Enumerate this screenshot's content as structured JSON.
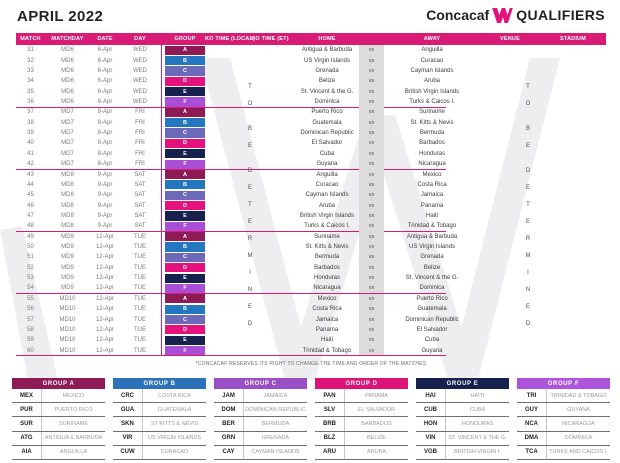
{
  "title": "APRIL 2022",
  "logo": {
    "brand": "Concacaf",
    "w_mark": "W",
    "product": "QUALIFIERS"
  },
  "colors": {
    "accent_pink": "#D81B75",
    "chips": {
      "A": "#8E1B56",
      "B": "#2377BE",
      "C": "#6B69B8",
      "D": "#E5127D",
      "E": "#16214D",
      "F": "#A94ED6"
    },
    "group_headers": {
      "A": "#8E1B56",
      "B": "#2B72B8",
      "C": "#9A4FC6",
      "D": "#DE1377",
      "E": "#16214D",
      "F": "#AE54DB"
    }
  },
  "schedule": {
    "columns": [
      "MATCH",
      "MATCHDAY",
      "DATE",
      "DAY",
      "GROUP",
      "KO TIME (LOCAL)",
      "KO TIME (ET)",
      "HOME",
      "AWAY",
      "VENUE",
      "STADIUM"
    ],
    "vs_label": "vs",
    "ko_time_placeholder": "TO BE DETERMINED",
    "venue_placeholder": "TO BE DETERMINED",
    "rows": [
      {
        "match": "31",
        "matchday": "MD6",
        "date": "6-Apr",
        "day": "WED",
        "group": "A",
        "home": "Antigua & Barbuda",
        "away": "Anguilla"
      },
      {
        "match": "32",
        "matchday": "MD6",
        "date": "6-Apr",
        "day": "WED",
        "group": "B",
        "home": "US Virgin Islands",
        "away": "Curacao"
      },
      {
        "match": "33",
        "matchday": "MD6",
        "date": "6-Apr",
        "day": "WED",
        "group": "C",
        "home": "Grenada",
        "away": "Cayman Islands"
      },
      {
        "match": "34",
        "matchday": "MD6",
        "date": "6-Apr",
        "day": "WED",
        "group": "D",
        "home": "Belize",
        "away": "Aruba"
      },
      {
        "match": "35",
        "matchday": "MD6",
        "date": "6-Apr",
        "day": "WED",
        "group": "E",
        "home": "St. Vincent & the G.",
        "away": "British Virgin Islands"
      },
      {
        "match": "36",
        "matchday": "MD6",
        "date": "6-Apr",
        "day": "WED",
        "group": "F",
        "home": "Dominica",
        "away": "Turks & Caicos I."
      },
      {
        "match": "37",
        "matchday": "MD7",
        "date": "8-Apr",
        "day": "FRI",
        "group": "A",
        "home": "Puerto Rico",
        "away": "Suriname"
      },
      {
        "match": "38",
        "matchday": "MD7",
        "date": "8-Apr",
        "day": "FRI",
        "group": "B",
        "home": "Guatemala",
        "away": "St. Kitts & Nevis"
      },
      {
        "match": "39",
        "matchday": "MD7",
        "date": "8-Apr",
        "day": "FRI",
        "group": "C",
        "home": "Dominican Republic",
        "away": "Bermuda"
      },
      {
        "match": "40",
        "matchday": "MD7",
        "date": "8-Apr",
        "day": "FRI",
        "group": "D",
        "home": "El Salvador",
        "away": "Barbados"
      },
      {
        "match": "41",
        "matchday": "MD7",
        "date": "8-Apr",
        "day": "FRI",
        "group": "E",
        "home": "Cuba",
        "away": "Honduras"
      },
      {
        "match": "42",
        "matchday": "MD7",
        "date": "8-Apr",
        "day": "FRI",
        "group": "F",
        "home": "Guyana",
        "away": "Nicaragua"
      },
      {
        "match": "43",
        "matchday": "MD8",
        "date": "9-Apr",
        "day": "SAT",
        "group": "A",
        "home": "Anguilla",
        "away": "Mexico"
      },
      {
        "match": "44",
        "matchday": "MD8",
        "date": "9-Apr",
        "day": "SAT",
        "group": "B",
        "home": "Curacao",
        "away": "Costa Rica"
      },
      {
        "match": "45",
        "matchday": "MD8",
        "date": "9-Apr",
        "day": "SAT",
        "group": "C",
        "home": "Cayman Islands",
        "away": "Jamaica"
      },
      {
        "match": "46",
        "matchday": "MD8",
        "date": "9-Apr",
        "day": "SAT",
        "group": "D",
        "home": "Aruba",
        "away": "Panama"
      },
      {
        "match": "47",
        "matchday": "MD8",
        "date": "9-Apr",
        "day": "SAT",
        "group": "E",
        "home": "British Virgin Islands",
        "away": "Haiti"
      },
      {
        "match": "48",
        "matchday": "MD8",
        "date": "9-Apr",
        "day": "SAT",
        "group": "F",
        "home": "Turks & Caicos I.",
        "away": "Trinidad & Tobago"
      },
      {
        "match": "49",
        "matchday": "MD9",
        "date": "12-Apr",
        "day": "TUE",
        "group": "A",
        "home": "Suriname",
        "away": "Antigua & Barbuda"
      },
      {
        "match": "50",
        "matchday": "MD9",
        "date": "12-Apr",
        "day": "TUE",
        "group": "B",
        "home": "St. Kitts & Nevis",
        "away": "US Virgin Islands"
      },
      {
        "match": "51",
        "matchday": "MD9",
        "date": "12-Apr",
        "day": "TUE",
        "group": "C",
        "home": "Bermuda",
        "away": "Grenada"
      },
      {
        "match": "52",
        "matchday": "MD9",
        "date": "12-Apr",
        "day": "TUE",
        "group": "D",
        "home": "Barbados",
        "away": "Belize"
      },
      {
        "match": "53",
        "matchday": "MD9",
        "date": "12-Apr",
        "day": "TUE",
        "group": "E",
        "home": "Honduras",
        "away": "St. Vincent & the G."
      },
      {
        "match": "54",
        "matchday": "MD9",
        "date": "12-Apr",
        "day": "TUE",
        "group": "F",
        "home": "Nicaragua",
        "away": "Dominica"
      },
      {
        "match": "55",
        "matchday": "MD10",
        "date": "12-Apr",
        "day": "TUE",
        "group": "A",
        "home": "Mexico",
        "away": "Puerto Rico"
      },
      {
        "match": "56",
        "matchday": "MD10",
        "date": "12-Apr",
        "day": "TUE",
        "group": "B",
        "home": "Costa Rica",
        "away": "Guatemala"
      },
      {
        "match": "57",
        "matchday": "MD10",
        "date": "12-Apr",
        "day": "TUE",
        "group": "C",
        "home": "Jamaica",
        "away": "Dominican Republic"
      },
      {
        "match": "58",
        "matchday": "MD10",
        "date": "12-Apr",
        "day": "TUE",
        "group": "D",
        "home": "Panama",
        "away": "El Salvador"
      },
      {
        "match": "59",
        "matchday": "MD10",
        "date": "12-Apr",
        "day": "TUE",
        "group": "E",
        "home": "Haiti",
        "away": "Cuba"
      },
      {
        "match": "60",
        "matchday": "MD10",
        "date": "12-Apr",
        "day": "TUE",
        "group": "F",
        "home": "Trinidad & Tobago",
        "away": "Guyana"
      }
    ]
  },
  "note": "*CONCACAF RESERVES ITS RIGHT TO CHANGE THE TIME AND ORDER OF THE MATCHES",
  "groups": [
    {
      "letter": "A",
      "name": "GROUP A",
      "teams": [
        {
          "code": "MEX",
          "team": "MEXICO"
        },
        {
          "code": "PUR",
          "team": "PUERTO RICO"
        },
        {
          "code": "SUR",
          "team": "SURINAME"
        },
        {
          "code": "ATG",
          "team": "ANTIGUA & BARBUDA"
        },
        {
          "code": "AIA",
          "team": "ANGUILLA"
        }
      ]
    },
    {
      "letter": "B",
      "name": "GROUP B",
      "teams": [
        {
          "code": "CRC",
          "team": "COSTA RICA"
        },
        {
          "code": "GUA",
          "team": "GUATEMALA"
        },
        {
          "code": "SKN",
          "team": "ST KITTS & NEVIS"
        },
        {
          "code": "VIR",
          "team": "US VIRGIN ISLANDS"
        },
        {
          "code": "CUW",
          "team": "CURACAO"
        }
      ]
    },
    {
      "letter": "C",
      "name": "GROUP C",
      "teams": [
        {
          "code": "JAM",
          "team": "JAMAICA"
        },
        {
          "code": "DOM",
          "team": "DOMINICAN REPUBLIC"
        },
        {
          "code": "BER",
          "team": "BERMUDA"
        },
        {
          "code": "GRN",
          "team": "GRENADA"
        },
        {
          "code": "CAY",
          "team": "CAYMAN ISLANDS"
        }
      ]
    },
    {
      "letter": "D",
      "name": "GROUP D",
      "teams": [
        {
          "code": "PAN",
          "team": "PANAMA"
        },
        {
          "code": "SLV",
          "team": "EL SALVADOR"
        },
        {
          "code": "BRB",
          "team": "BARBADOS"
        },
        {
          "code": "BLZ",
          "team": "BELIZE"
        },
        {
          "code": "ARU",
          "team": "ARUBA"
        }
      ]
    },
    {
      "letter": "E",
      "name": "GROUP E",
      "teams": [
        {
          "code": "HAI",
          "team": "HAITI"
        },
        {
          "code": "CUB",
          "team": "CUBA"
        },
        {
          "code": "HON",
          "team": "HONDURAS"
        },
        {
          "code": "VIN",
          "team": "ST. VINCENT & THE G."
        },
        {
          "code": "VGB",
          "team": "BRITISH VIRGIN I."
        }
      ]
    },
    {
      "letter": "F",
      "name": "GROUP F",
      "teams": [
        {
          "code": "TRI",
          "team": "TRINIDAD & TOBAGO"
        },
        {
          "code": "GUY",
          "team": "GUYANA"
        },
        {
          "code": "NCA",
          "team": "NICARAGUA"
        },
        {
          "code": "DMA",
          "team": "DOMINICA"
        },
        {
          "code": "TCA",
          "team": "TURKS AND CAICOS I."
        }
      ]
    }
  ]
}
